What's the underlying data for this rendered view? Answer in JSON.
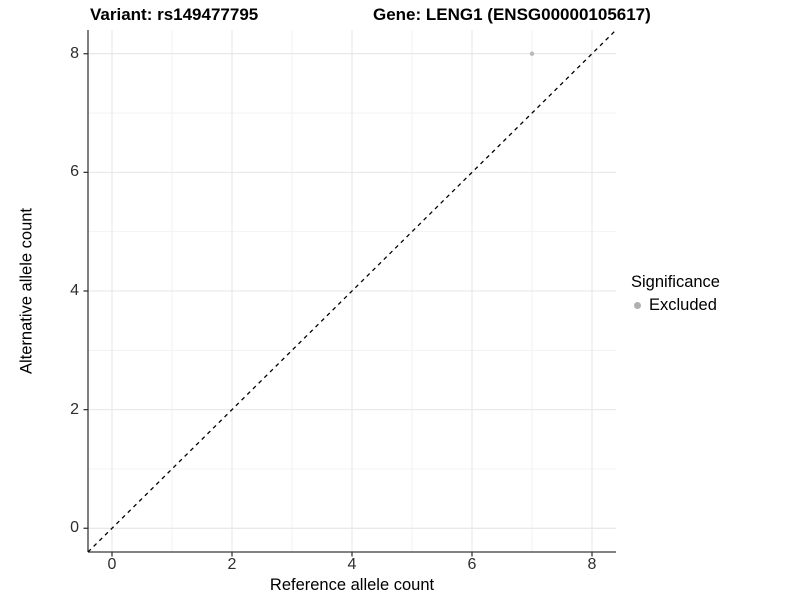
{
  "figure": {
    "title_left": "Variant: rs149477795",
    "title_right": "Gene: LENG1 (ENSG00000105617)"
  },
  "chart_data": {
    "type": "scatter",
    "title": "Variant: rs149477795    Gene: LENG1 (ENSG00000105617)",
    "xlabel": "Reference allele count",
    "ylabel": "Alternative allele count",
    "xlim": [
      -0.4,
      8.4
    ],
    "ylim": [
      -0.4,
      8.4
    ],
    "x_ticks": [
      0,
      2,
      4,
      6,
      8
    ],
    "y_ticks": [
      0,
      2,
      4,
      6,
      8
    ],
    "x_minor": [
      1,
      3,
      5,
      7
    ],
    "y_minor": [
      1,
      3,
      5,
      7
    ],
    "grid": true,
    "series": [
      {
        "name": "Excluded",
        "color": "#b9b9b9",
        "marker_radius": 2.2,
        "points": [
          {
            "x": 7,
            "y": 8
          }
        ]
      }
    ],
    "reference_line": {
      "type": "identity",
      "style": "dashed",
      "color": "#000000",
      "from": [
        -0.4,
        -0.4
      ],
      "to": [
        8.4,
        8.4
      ]
    },
    "legend": {
      "title": "Significance",
      "position": "right",
      "entries": [
        {
          "label": "Excluded",
          "marker_color": "#b0b0b0"
        }
      ]
    },
    "colors": {
      "background": "#ffffff",
      "major_grid": "#e6e6e6",
      "minor_grid": "#f1f1f1",
      "axis": "#383838",
      "tick_mark": "#383838"
    }
  }
}
